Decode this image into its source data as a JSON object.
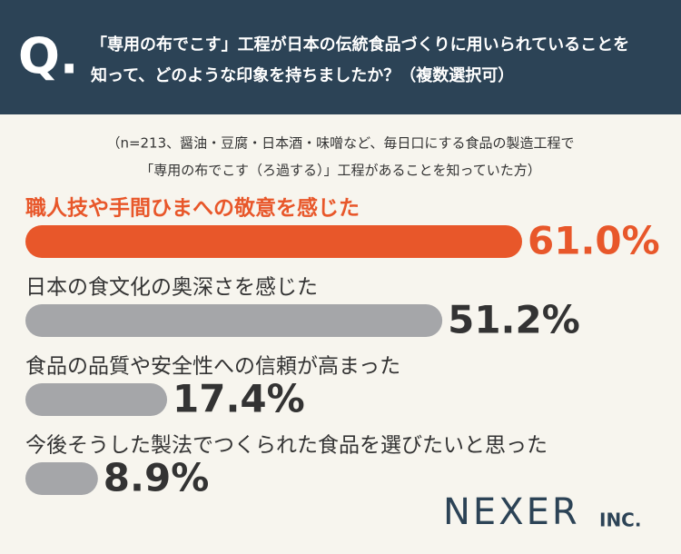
{
  "chart_data": {
    "type": "bar",
    "question_label": "Q.",
    "question": [
      "「専用の布でこす」工程が日本の伝統食品づくりに用いられていることを",
      "知って、どのような印象を持ちましたか？（複数選択可）"
    ],
    "subtitle": [
      "（n=213、醤油・豆腐・日本酒・味噌など、毎日口にする食品の製造工程で",
      "「専用の布でこす（ろ過する）」工程があることを知っていた方）"
    ],
    "categories": [
      "職人技や手間ひまへの敬意を感じた",
      "日本の食文化の奥深さを感じた",
      "食品の品質や安全性への信頼が高まった",
      "今後そうした製法でつくられた食品を選びたいと思った"
    ],
    "values": [
      61.0,
      51.2,
      17.4,
      8.9
    ],
    "value_labels": [
      "61.0%",
      "51.2%",
      "17.4%",
      "8.9%"
    ],
    "colors": [
      "#e8572a",
      "#a5a6a9",
      "#a5a6a9",
      "#a5a6a9"
    ],
    "label_colors": [
      "#e8572a",
      "#333333",
      "#333333",
      "#333333"
    ],
    "logo": [
      "NEXER",
      "INC."
    ]
  }
}
